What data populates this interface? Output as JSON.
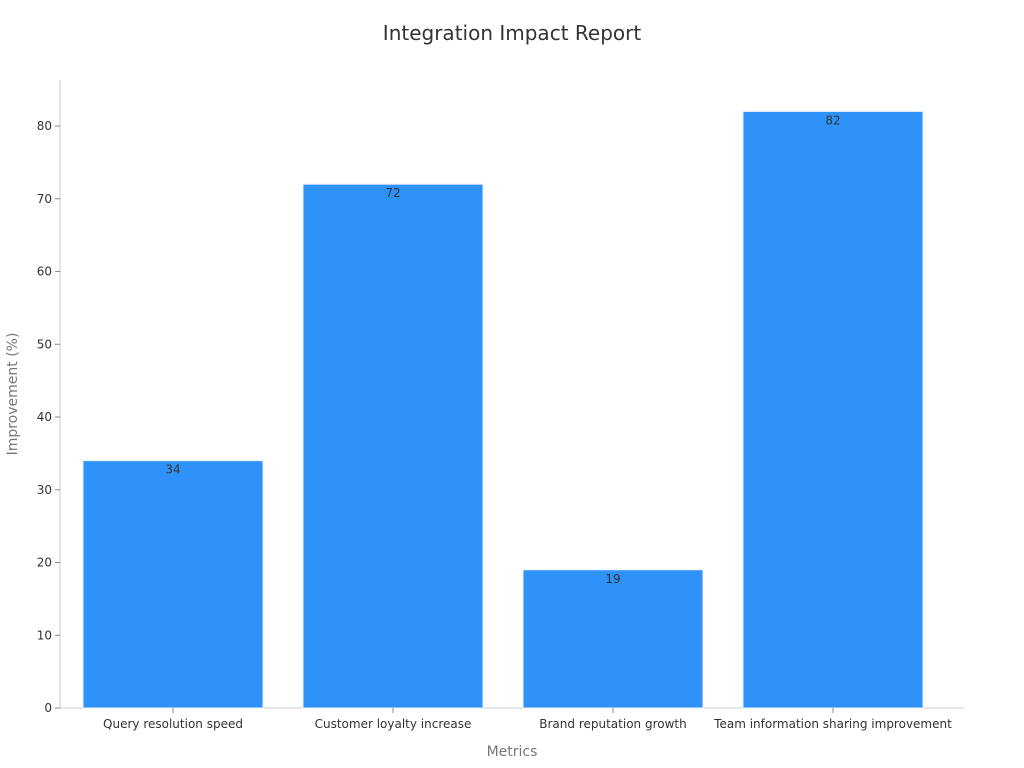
{
  "chart_data": {
    "type": "bar",
    "title": "Integration Impact Report",
    "xlabel": "Metrics",
    "ylabel": "Improvement (%)",
    "categories": [
      "Query resolution speed",
      "Customer loyalty increase",
      "Brand reputation growth",
      "Team information sharing improvement"
    ],
    "values": [
      34,
      72,
      19,
      82
    ],
    "ylim": [
      0,
      86
    ],
    "yticks": [
      0,
      10,
      20,
      30,
      40,
      50,
      60,
      70,
      80
    ],
    "grid": false,
    "legend": "none",
    "bar_color": "#2f92f8",
    "bar_edge_color": "#e6f0fb"
  }
}
